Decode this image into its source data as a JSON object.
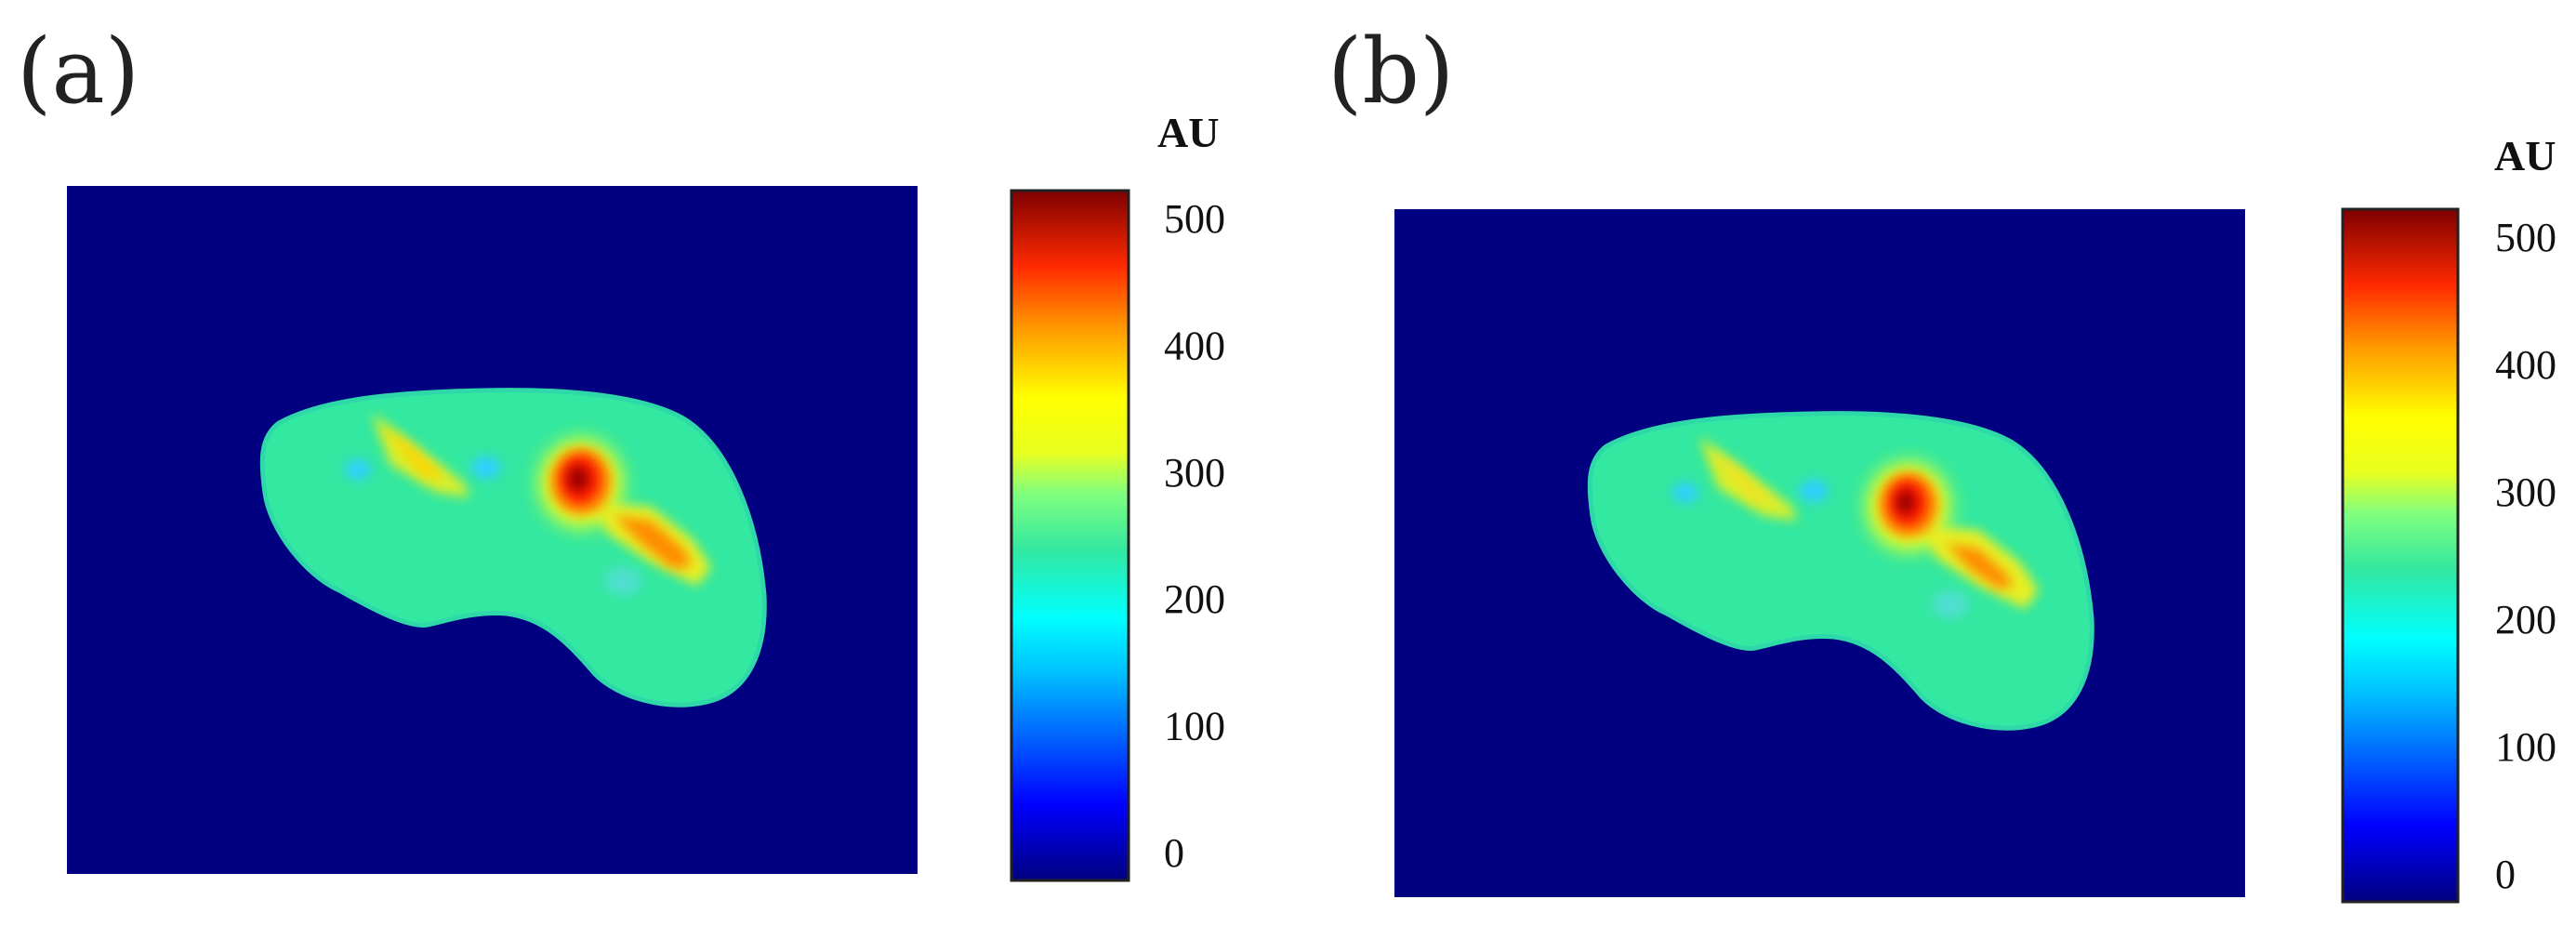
{
  "chart_data": [
    {
      "type": "heatmap",
      "panel_label": "(a)",
      "colorbar": {
        "unit": "AU",
        "range": [
          0,
          500
        ],
        "ticks": [
          "500",
          "400",
          "300",
          "200",
          "100",
          "0"
        ],
        "colormap": "jet"
      },
      "background_color": "#000080"
    },
    {
      "type": "heatmap",
      "panel_label": "(b)",
      "colorbar": {
        "unit": "AU",
        "range": [
          0,
          500
        ],
        "ticks": [
          "500",
          "400",
          "300",
          "200",
          "100",
          "0"
        ],
        "colormap": "jet"
      },
      "background_color": "#000080"
    }
  ],
  "colors": {
    "background": "#000080",
    "tissue": "#33e8a0",
    "yellow": "#e8e830",
    "orange": "#ff8c00",
    "red": "#ff1a00",
    "dark_red": "#990000",
    "cyan": "#2ecfff"
  }
}
